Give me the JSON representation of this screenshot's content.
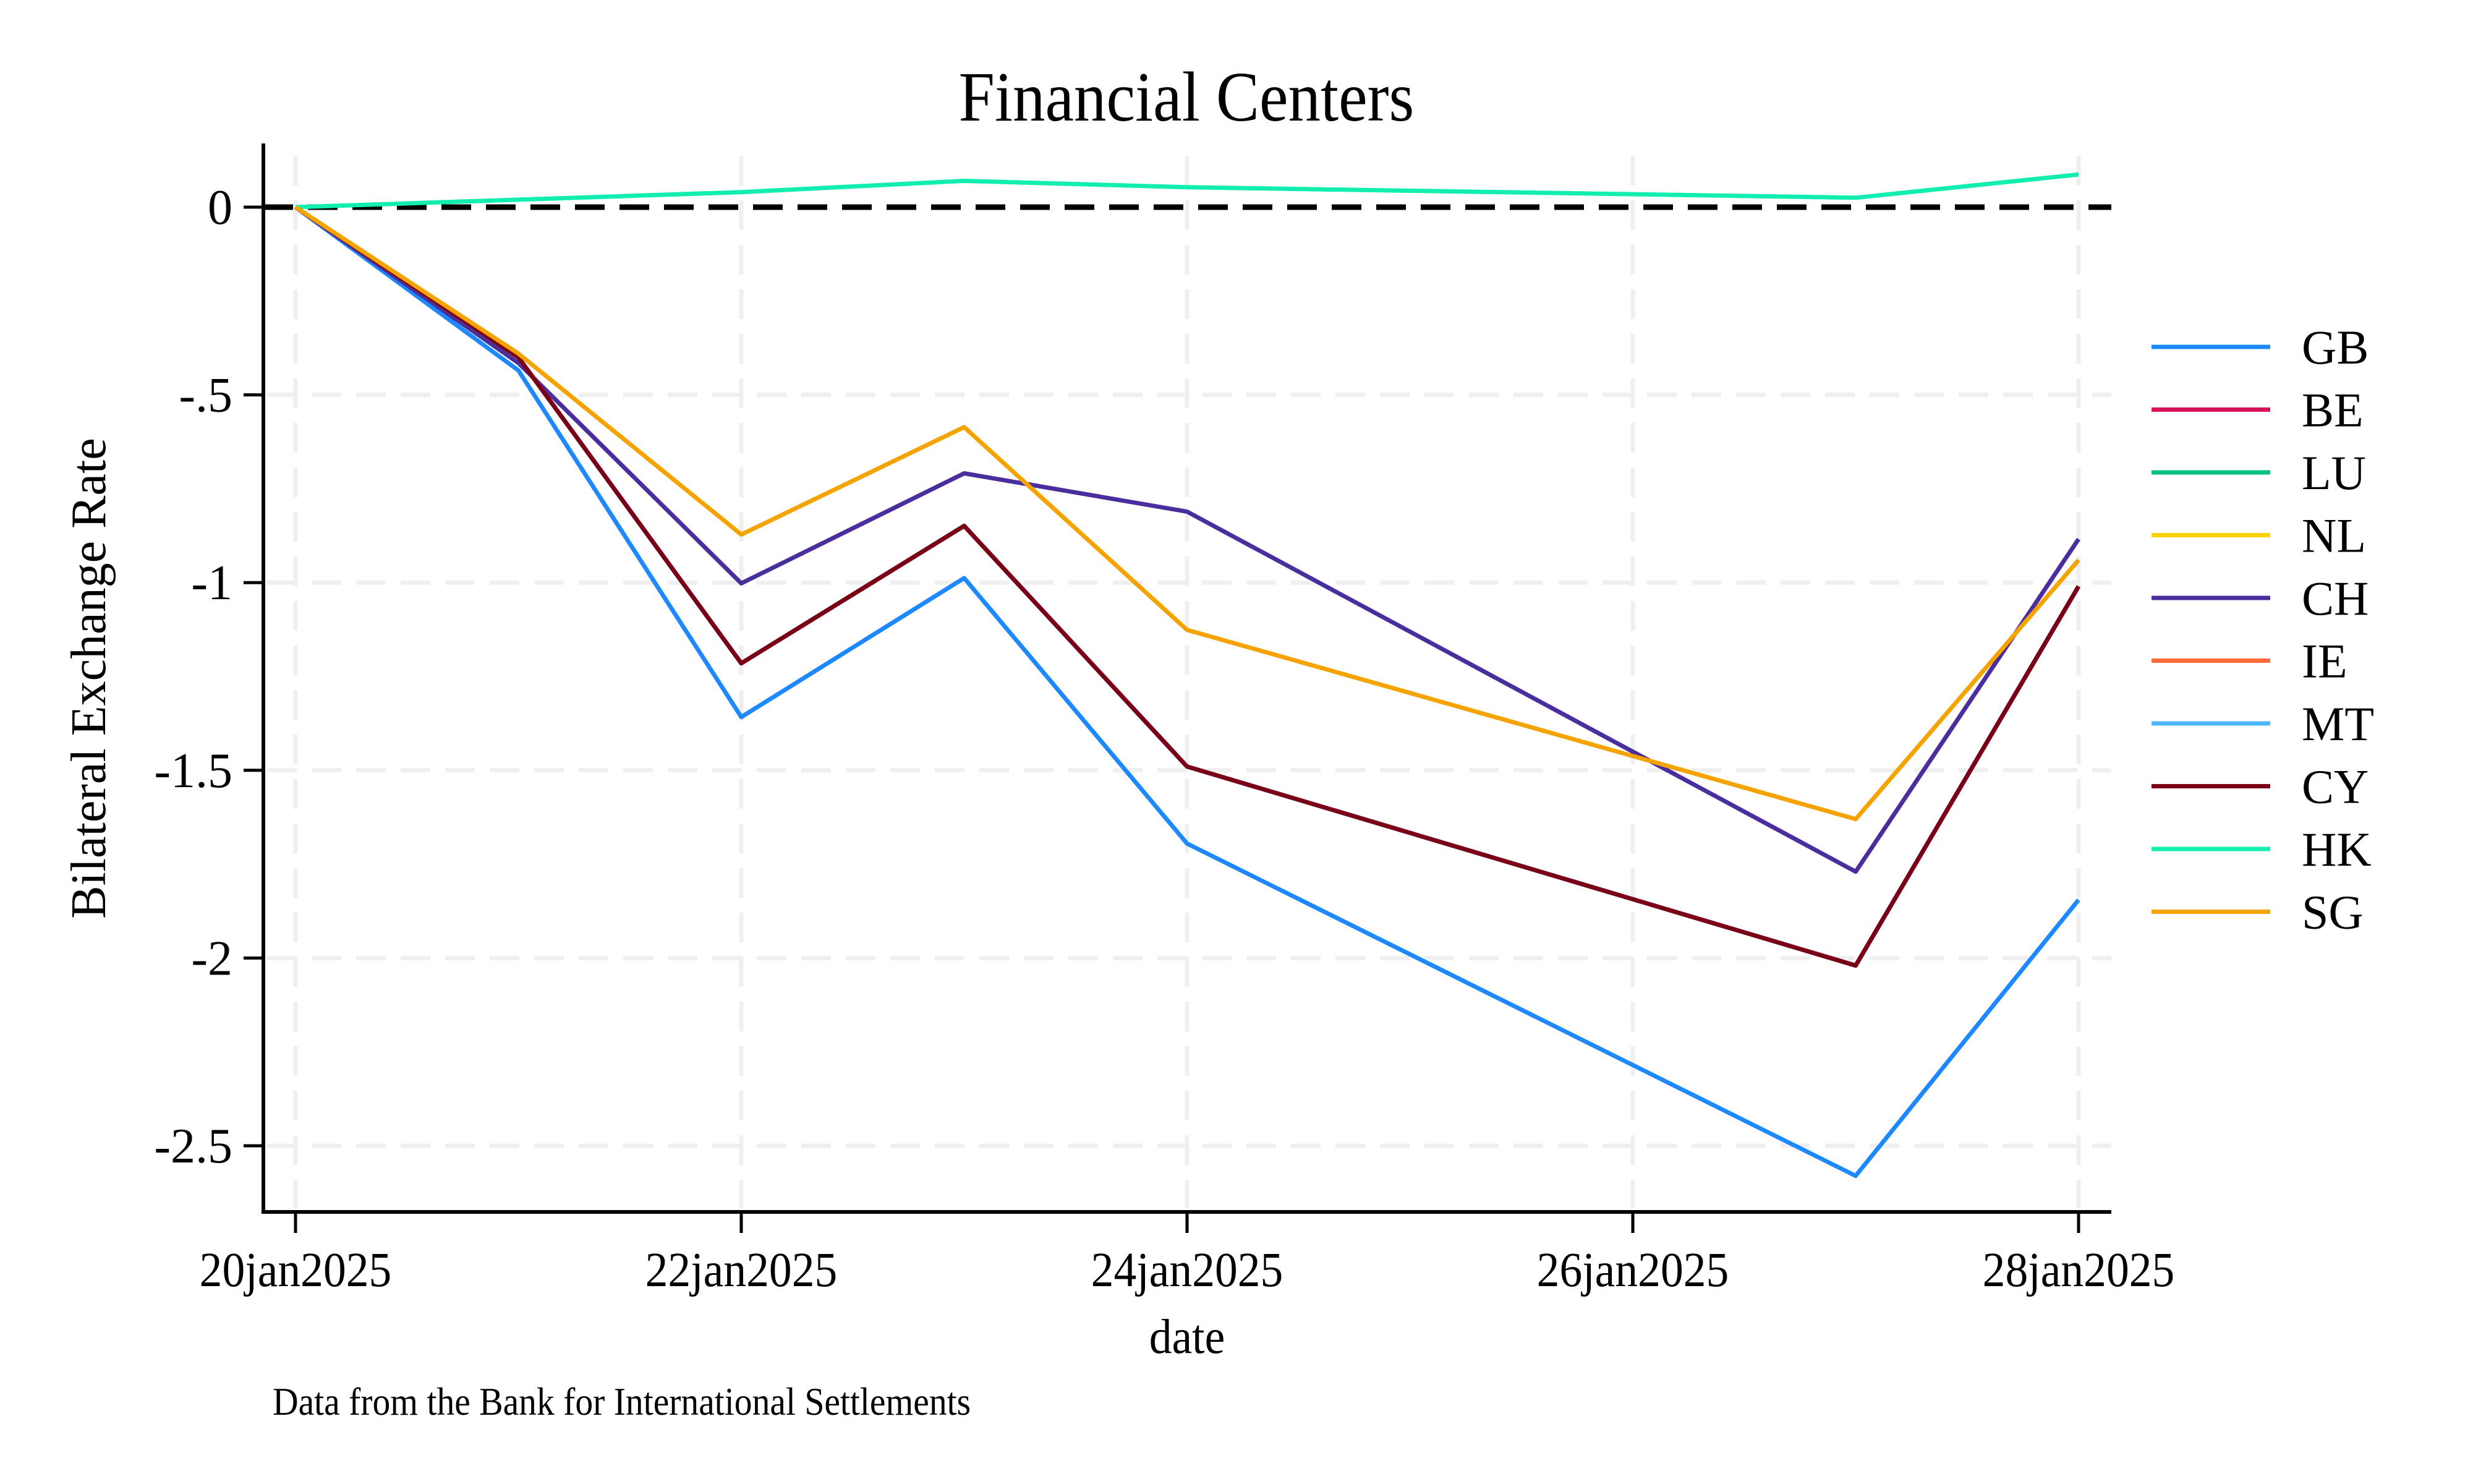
{
  "chart_data": {
    "type": "line",
    "title": "Financial Centers",
    "xlabel": "date",
    "ylabel": "Bilateral Exchange Rate",
    "note": "Data from the Bank for International Settlements",
    "x": [
      "20jan2025",
      "21jan2025",
      "22jan2025",
      "23jan2025",
      "24jan2025",
      "27jan2025",
      "28jan2025"
    ],
    "x_day_index": [
      0,
      1,
      2,
      3,
      4,
      7,
      8
    ],
    "x_ticks": [
      {
        "label": "20jan2025",
        "day": 0
      },
      {
        "label": "22jan2025",
        "day": 2
      },
      {
        "label": "24jan2025",
        "day": 4
      },
      {
        "label": "26jan2025",
        "day": 6
      },
      {
        "label": "28jan2025",
        "day": 8
      }
    ],
    "y_ticks": [
      {
        "label": "0",
        "value": 0
      },
      {
        "label": "-.5",
        "value": -0.5
      },
      {
        "label": "-1",
        "value": -1
      },
      {
        "label": "-1.5",
        "value": -1.5
      },
      {
        "label": "-2",
        "value": -2
      },
      {
        "label": "-2.5",
        "value": -2.5
      }
    ],
    "xlim_days": [
      -0.15,
      8.15
    ],
    "ylim": [
      -2.68,
      0.17
    ],
    "grid": true,
    "reference_line": {
      "value": 0,
      "style": "dashed",
      "color": "#000000"
    },
    "legend_position": "right",
    "series": [
      {
        "name": "GB",
        "color": "#1e88ff",
        "values": [
          0,
          -0.435,
          -1.358,
          -0.988,
          -1.695,
          -2.58,
          -1.845
        ]
      },
      {
        "name": "BE",
        "color": "#d6145a",
        "values": [
          0,
          -0.4,
          -1.215,
          -0.849,
          -1.49,
          -2.02,
          -1.01
        ]
      },
      {
        "name": "LU",
        "color": "#00c080",
        "values": [
          0,
          -0.4,
          -1.215,
          -0.849,
          -1.49,
          -2.02,
          -1.01
        ]
      },
      {
        "name": "NL",
        "color": "#ffd200",
        "values": [
          0,
          -0.4,
          -1.215,
          -0.849,
          -1.49,
          -2.02,
          -1.01
        ]
      },
      {
        "name": "CH",
        "color": "#4b2e9e",
        "values": [
          0,
          -0.415,
          -1.002,
          -0.709,
          -0.811,
          -1.77,
          -0.884
        ]
      },
      {
        "name": "IE",
        "color": "#ff6a3a",
        "values": [
          0,
          -0.4,
          -1.215,
          -0.849,
          -1.49,
          -2.02,
          -1.01
        ]
      },
      {
        "name": "MT",
        "color": "#4db8ff",
        "values": [
          0,
          -0.4,
          -1.215,
          -0.849,
          -1.49,
          -2.02,
          -1.01
        ]
      },
      {
        "name": "CY",
        "color": "#7a0018",
        "values": [
          0,
          -0.4,
          -1.215,
          -0.849,
          -1.49,
          -2.02,
          -1.01
        ]
      },
      {
        "name": "HK",
        "color": "#12eeb0",
        "values": [
          0,
          0.02,
          0.04,
          0.07,
          0.053,
          0.025,
          0.087
        ]
      },
      {
        "name": "SG",
        "color": "#f5a300",
        "values": [
          0,
          -0.39,
          -0.872,
          -0.586,
          -1.126,
          -1.63,
          -0.94
        ]
      }
    ]
  }
}
